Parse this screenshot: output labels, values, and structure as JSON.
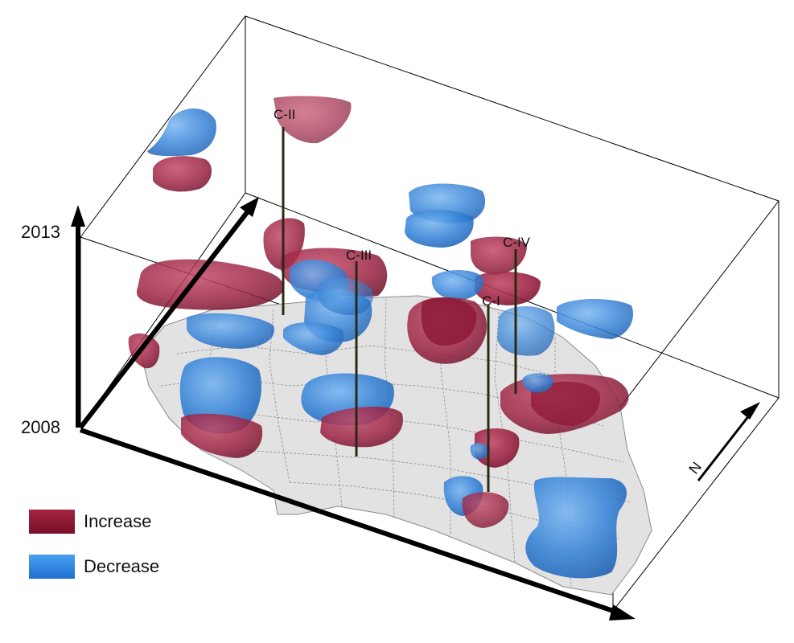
{
  "axis": {
    "time_top": "2013",
    "time_bottom": "2008"
  },
  "clusters": [
    {
      "id": "c1",
      "label": "C-I"
    },
    {
      "id": "c2",
      "label": "C-II"
    },
    {
      "id": "c3",
      "label": "C-III"
    },
    {
      "id": "c4",
      "label": "C-IV"
    }
  ],
  "legend": [
    {
      "label": "Increase",
      "color": "#8c1a35"
    },
    {
      "label": "Decrease",
      "color": "#2f80e0"
    }
  ],
  "north_arrow": {
    "label": "N"
  },
  "colors": {
    "increase": "#a83350",
    "decrease": "#3a86d8",
    "map_fill": "#e2e2e2",
    "map_stroke": "#8a8a8a",
    "axis": "#000000",
    "box": "#000000",
    "stalk": "#2a2a14"
  }
}
